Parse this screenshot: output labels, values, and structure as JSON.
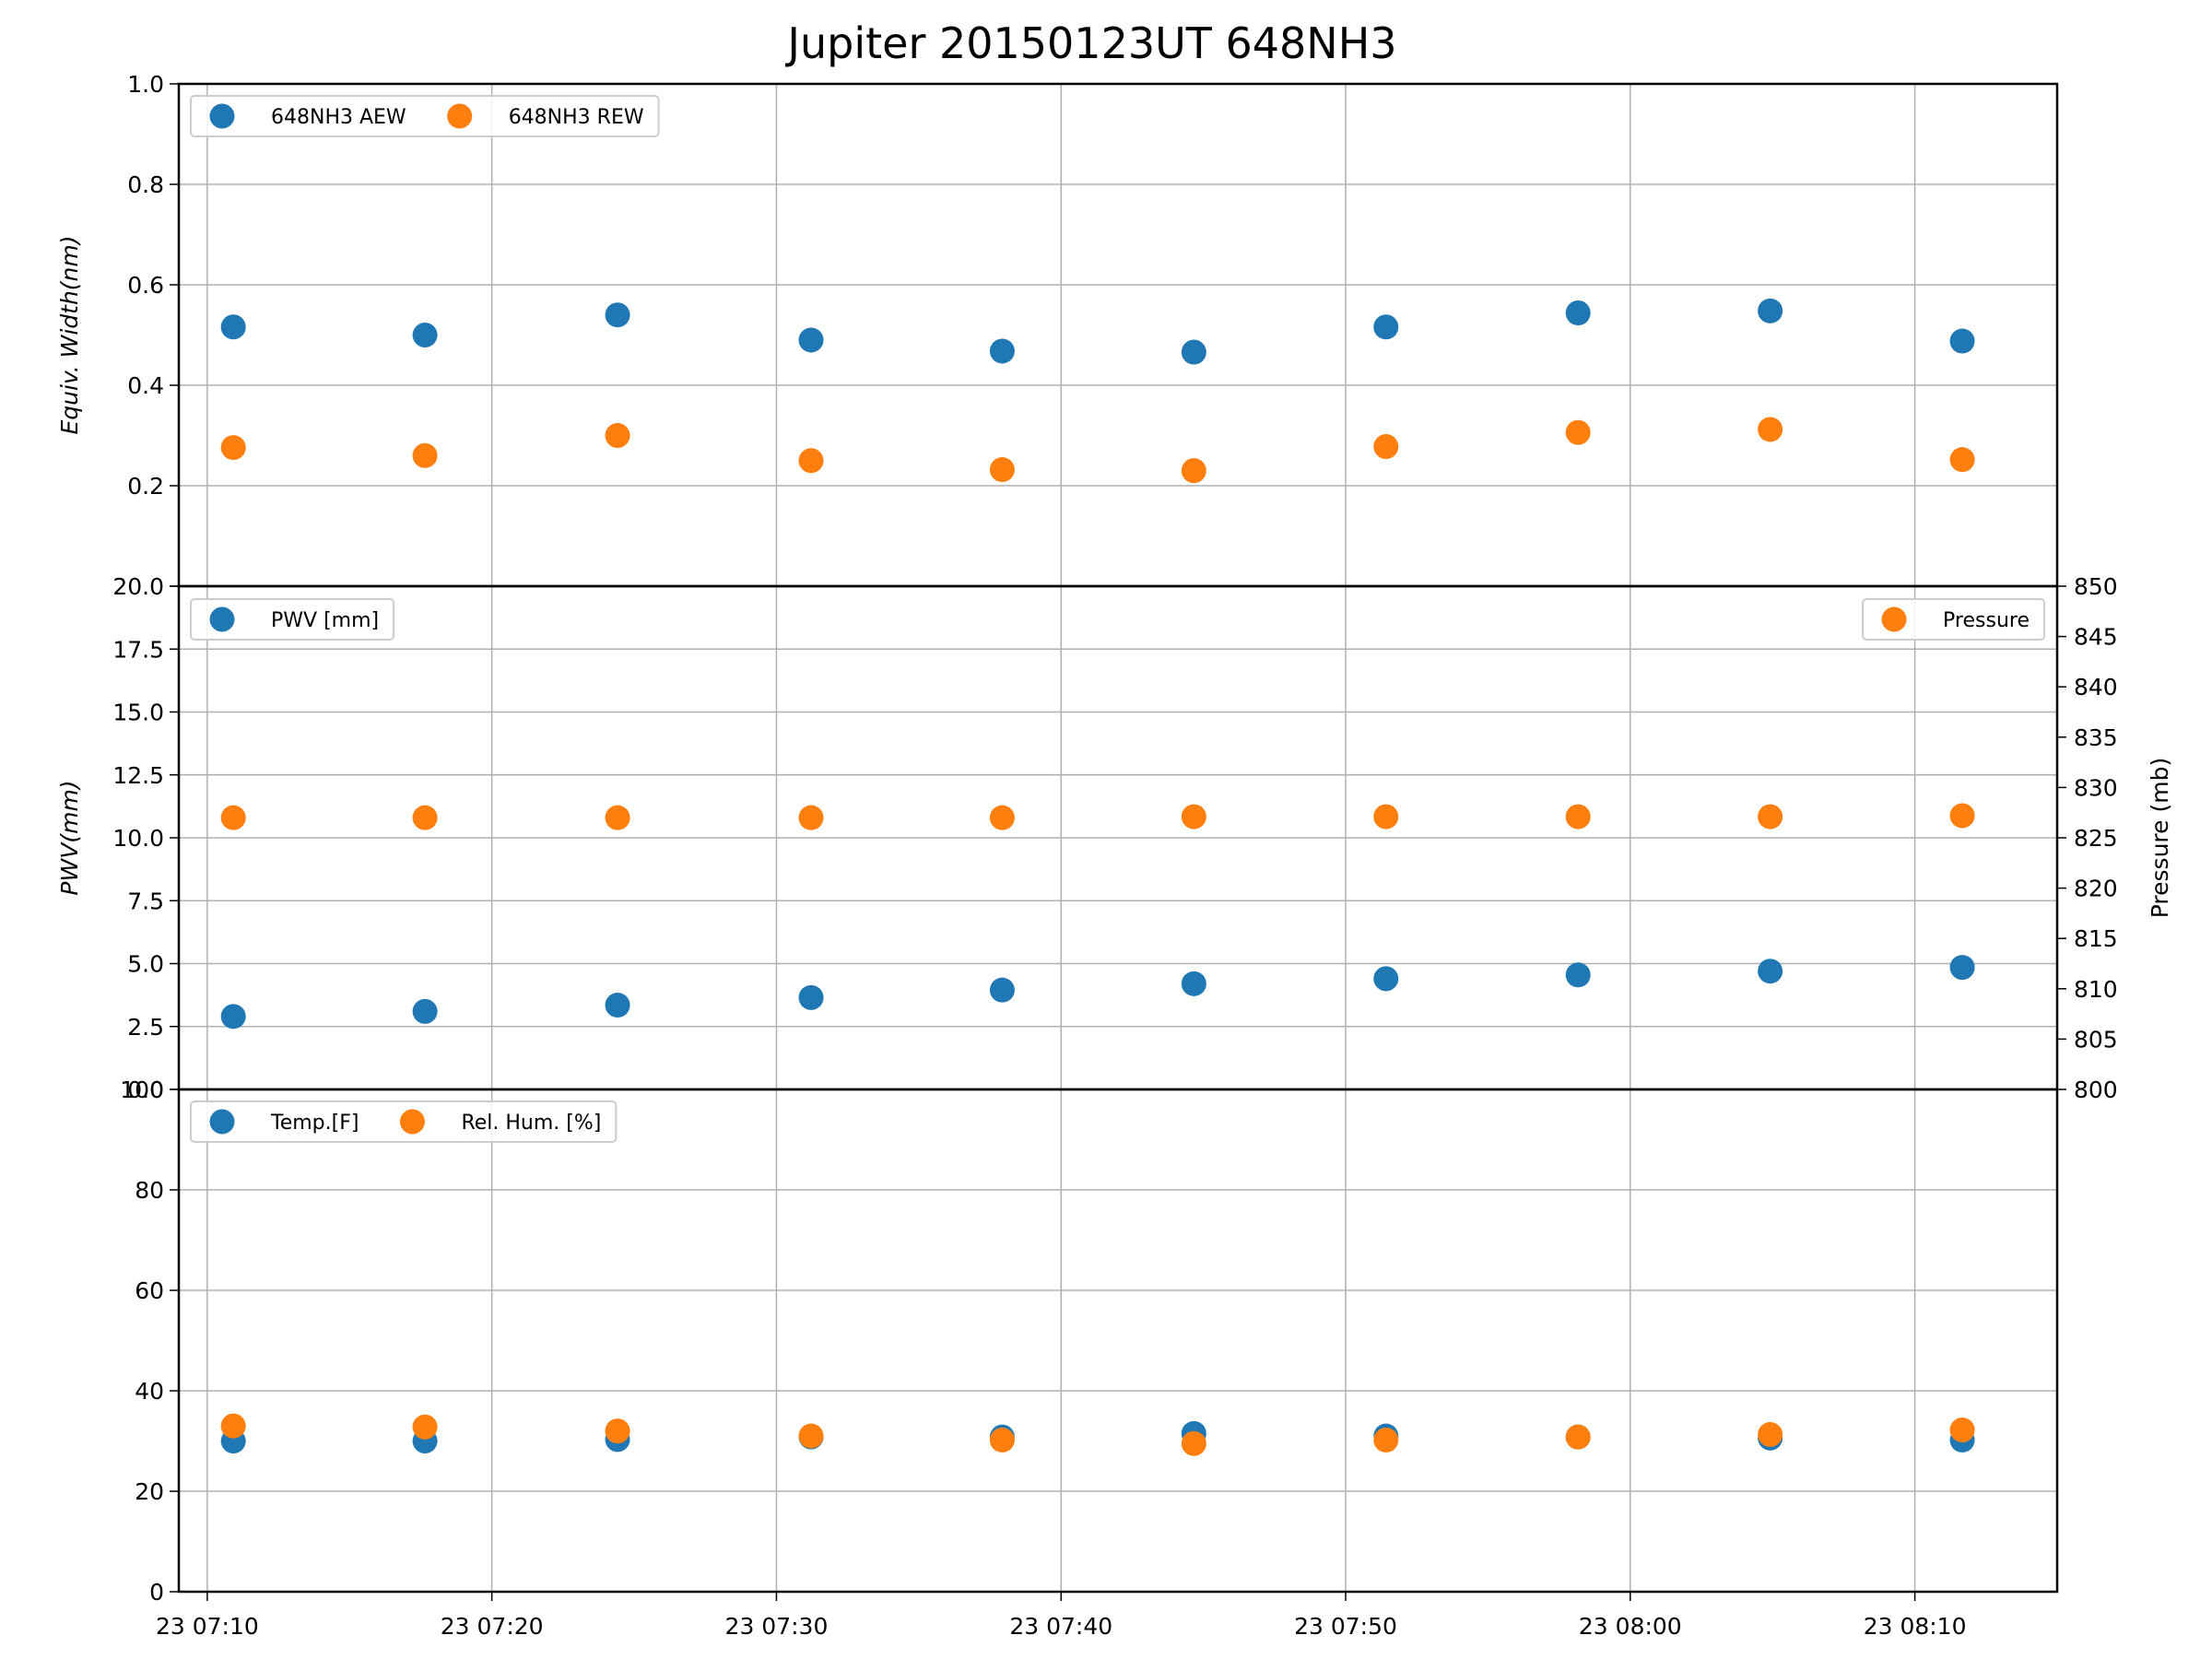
{
  "chart_data": {
    "type": "scatter",
    "title": "Jupiter 20150123UT 648NH3",
    "x_axis": {
      "type": "time",
      "date": "2015-01-23",
      "range": [
        "2015-01-23 07:09:00",
        "2015-01-23 08:15:00"
      ],
      "tick_values": [
        "2015-01-23 07:10",
        "2015-01-23 07:20",
        "2015-01-23 07:30",
        "2015-01-23 07:40",
        "2015-01-23 07:50",
        "2015-01-23 08:00",
        "2015-01-23 08:10"
      ],
      "tick_labels": [
        "23 07:10",
        "23 07:20",
        "23 07:30",
        "23 07:40",
        "23 07:50",
        "23 08:00",
        "23 08:10"
      ]
    },
    "x": [
      "2015-01-23 07:10:55",
      "2015-01-23 07:17:39",
      "2015-01-23 07:24:25",
      "2015-01-23 07:31:13",
      "2015-01-23 07:37:56",
      "2015-01-23 07:44:40",
      "2015-01-23 07:51:25",
      "2015-01-23 07:58:10",
      "2015-01-23 08:04:55",
      "2015-01-23 08:11:40"
    ],
    "colors": {
      "blue": "#1f77b4",
      "orange": "#ff7f0e",
      "grid": "#b0b0b0"
    },
    "panels": [
      {
        "ylabel": "Equiv. Width(nm)",
        "ylim": [
          0,
          1.0
        ],
        "yticks": [
          "",
          "0.2",
          "0.4",
          "0.6",
          "0.8",
          "1.0"
        ],
        "grid": true,
        "legend_position": "upper-left",
        "series": [
          {
            "name": "648NH3 AEW",
            "color": "#1f77b4",
            "values": [
              0.516,
              0.5,
              0.54,
              0.49,
              0.468,
              0.466,
              0.516,
              0.544,
              0.548,
              0.488
            ]
          },
          {
            "name": "648NH3 REW",
            "color": "#ff7f0e",
            "values": [
              0.276,
              0.26,
              0.3,
              0.25,
              0.232,
              0.23,
              0.278,
              0.306,
              0.312,
              0.252
            ]
          }
        ]
      },
      {
        "ylabel": "PWV(mm)",
        "ylim": [
          0,
          20
        ],
        "yticks": [
          "0.0",
          "2.5",
          "5.0",
          "7.5",
          "10.0",
          "12.5",
          "15.0",
          "17.5",
          "20.0"
        ],
        "grid": true,
        "legend_position": "upper-left",
        "series": [
          {
            "name": "PWV [mm]",
            "color": "#1f77b4",
            "values": [
              2.9,
              3.1,
              3.35,
              3.65,
              3.95,
              4.2,
              4.4,
              4.55,
              4.7,
              4.85
            ]
          }
        ],
        "secondary_axis": {
          "ylabel": "Pressure (mb)",
          "ylim": [
            800,
            850
          ],
          "yticks": [
            "800",
            "805",
            "810",
            "815",
            "820",
            "825",
            "830",
            "835",
            "840",
            "845",
            "850"
          ],
          "legend_position": "upper-right",
          "series": [
            {
              "name": "Pressure",
              "color": "#ff7f0e",
              "values": [
                827.0,
                827.0,
                827.0,
                827.0,
                827.0,
                827.1,
                827.1,
                827.1,
                827.1,
                827.2
              ]
            }
          ]
        }
      },
      {
        "ylabel": "",
        "ylim": [
          0,
          100
        ],
        "yticks": [
          "0",
          "20",
          "40",
          "60",
          "80",
          "100"
        ],
        "grid": true,
        "legend_position": "upper-left",
        "series": [
          {
            "name": "Temp.[F]",
            "color": "#1f77b4",
            "values": [
              30.0,
              30.0,
              30.3,
              30.8,
              30.8,
              31.5,
              31.0,
              30.8,
              30.6,
              30.2
            ]
          },
          {
            "name": "Rel. Hum. [%]",
            "color": "#ff7f0e",
            "values": [
              33.0,
              32.8,
              32.0,
              31.0,
              30.2,
              29.5,
              30.2,
              30.8,
              31.3,
              32.2
            ]
          }
        ]
      }
    ]
  }
}
